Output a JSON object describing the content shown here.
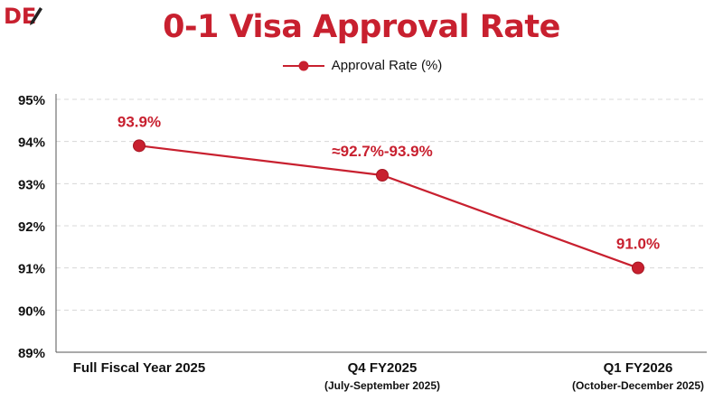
{
  "colors": {
    "accent": "#c8202f",
    "text": "#111111",
    "grid": "#d8d8d8",
    "axis": "#555555"
  },
  "logo": {
    "text": "DE",
    "icon": "pen-nib-icon"
  },
  "chart_data": {
    "type": "line",
    "title": "0-1 Visa Approval Rate",
    "xlabel": "",
    "ylabel": "",
    "categories": [
      {
        "label": "Full Fiscal Year 2025",
        "sublabel": ""
      },
      {
        "label": "Q4 FY2025",
        "sublabel": "(July-September 2025)"
      },
      {
        "label": "Q1 FY2026",
        "sublabel": "(October-December 2025)"
      }
    ],
    "series": [
      {
        "name": "Approval Rate (%)",
        "values": [
          93.9,
          93.2,
          91.0
        ],
        "data_labels": [
          "93.9%",
          "≈92.7%-93.9%",
          "91.0%"
        ]
      }
    ],
    "ylim": [
      89,
      95
    ],
    "yticks": [
      "89%",
      "90%",
      "91%",
      "92%",
      "93%",
      "94%",
      "95%"
    ],
    "grid": true,
    "legend": "top-center"
  }
}
